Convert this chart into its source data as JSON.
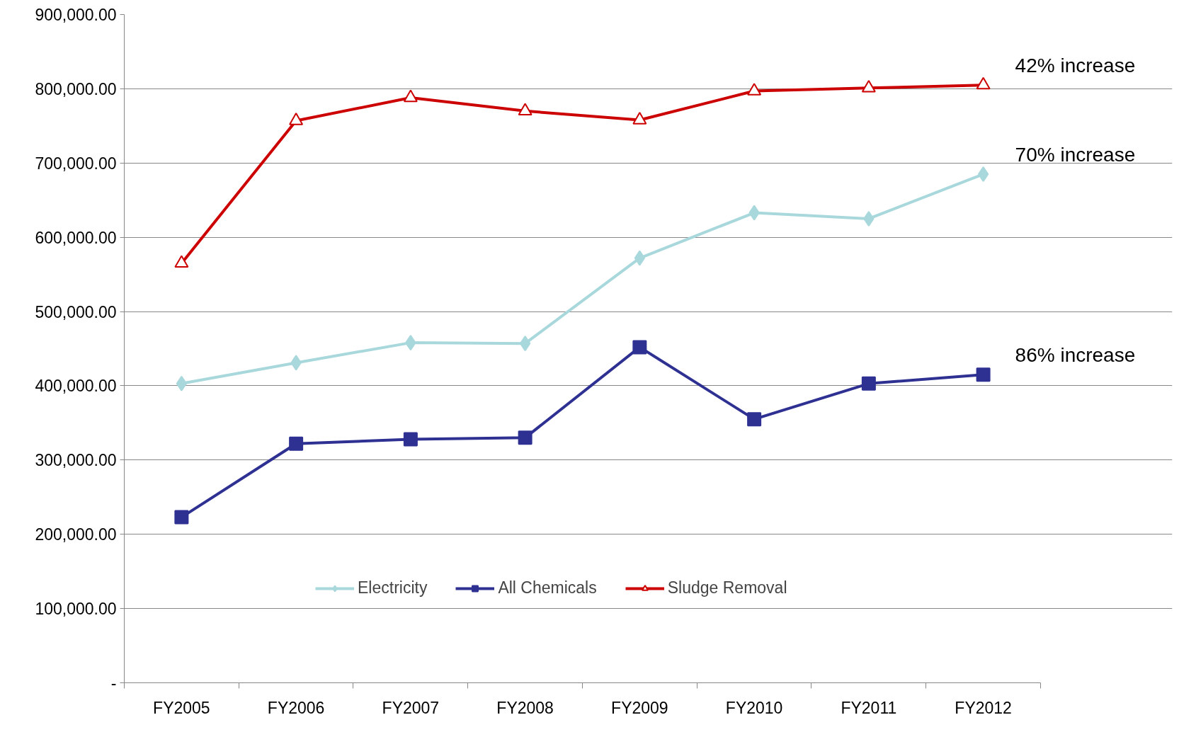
{
  "chart_data": {
    "type": "line",
    "categories": [
      "FY2005",
      "FY2006",
      "FY2007",
      "FY2008",
      "FY2009",
      "FY2010",
      "FY2011",
      "FY2012"
    ],
    "series": [
      {
        "name": "Electricity",
        "color": "#a8d8dc",
        "marker": "diamond",
        "values": [
          403000,
          431000,
          458000,
          457000,
          572000,
          633000,
          625000,
          685000
        ]
      },
      {
        "name": "All Chemicals",
        "color": "#2e3192",
        "marker": "square",
        "values": [
          223000,
          322000,
          328000,
          330000,
          452000,
          355000,
          403000,
          415000
        ]
      },
      {
        "name": "Sludge Removal",
        "color": "#cc0000",
        "marker": "triangle",
        "values": [
          565000,
          757000,
          788000,
          770000,
          758000,
          797000,
          801000,
          805000
        ]
      }
    ],
    "ylim": [
      0,
      900000
    ],
    "yticks": [
      {
        "value": 0,
        "label": "-"
      },
      {
        "value": 100000,
        "label": "100,000.00"
      },
      {
        "value": 200000,
        "label": "200,000.00"
      },
      {
        "value": 300000,
        "label": "300,000.00"
      },
      {
        "value": 400000,
        "label": "400,000.00"
      },
      {
        "value": 500000,
        "label": "500,000.00"
      },
      {
        "value": 600000,
        "label": "600,000.00"
      },
      {
        "value": 700000,
        "label": "700,000.00"
      },
      {
        "value": 800000,
        "label": "800,000.00"
      },
      {
        "value": 900000,
        "label": "900,000.00"
      }
    ],
    "grid": "y",
    "legend": "bottom",
    "line_style": "solid",
    "annotations": [
      {
        "text": "42% increase",
        "x": "FY2012",
        "y": 805000
      },
      {
        "text": "70% increase",
        "x": "FY2012",
        "y": 685000
      },
      {
        "text": "86% increase",
        "x": "FY2012",
        "y": 415000
      }
    ]
  }
}
